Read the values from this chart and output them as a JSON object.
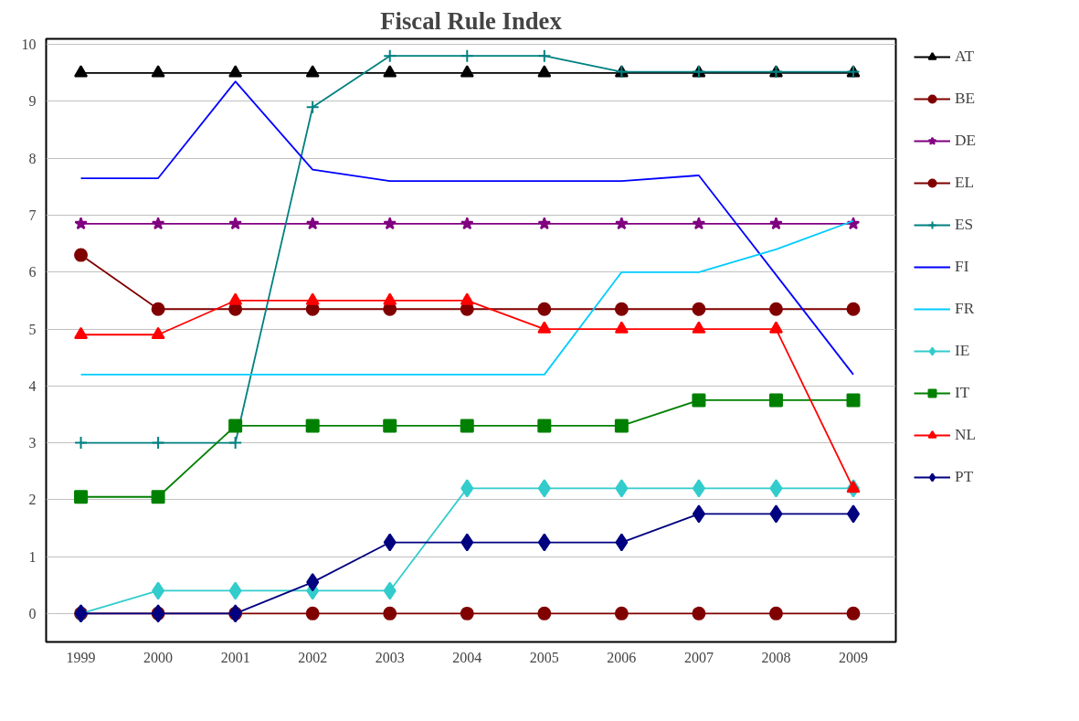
{
  "chart_data": {
    "type": "line",
    "title": "Fiscal Rule Index",
    "categories": [
      "1999",
      "2000",
      "2001",
      "2002",
      "2003",
      "2004",
      "2005",
      "2006",
      "2007",
      "2008",
      "2009"
    ],
    "series": [
      {
        "name": "AT",
        "color": "#000000",
        "marker": "triangle",
        "values": [
          9.5,
          9.5,
          9.5,
          9.5,
          9.5,
          9.5,
          9.5,
          9.5,
          9.5,
          9.5,
          9.5
        ]
      },
      {
        "name": "BE",
        "color": "#800000",
        "marker": "circle",
        "values": [
          6.3,
          5.35,
          5.35,
          5.35,
          5.35,
          5.35,
          5.35,
          5.35,
          5.35,
          5.35,
          5.35
        ]
      },
      {
        "name": "DE",
        "color": "#800080",
        "marker": "star",
        "values": [
          6.85,
          6.85,
          6.85,
          6.85,
          6.85,
          6.85,
          6.85,
          6.85,
          6.85,
          6.85,
          6.85
        ]
      },
      {
        "name": "EL",
        "color": "#800000",
        "marker": "circle",
        "values": [
          0,
          0,
          0,
          0,
          0,
          0,
          0,
          0,
          0,
          0,
          0
        ]
      },
      {
        "name": "ES",
        "color": "#008080",
        "marker": "cross",
        "values": [
          3.0,
          3.0,
          3.0,
          8.9,
          9.8,
          9.8,
          9.8,
          9.52,
          9.52,
          9.52,
          9.52
        ]
      },
      {
        "name": "FI",
        "color": "#0000ff",
        "marker": "none",
        "values": [
          7.65,
          7.65,
          9.35,
          7.8,
          7.6,
          7.6,
          7.6,
          7.6,
          7.7,
          5.95,
          4.2
        ]
      },
      {
        "name": "FR",
        "color": "#00ccff",
        "marker": "none",
        "values": [
          4.2,
          4.2,
          4.2,
          4.2,
          4.2,
          4.2,
          4.2,
          6.0,
          6.0,
          6.4,
          6.9
        ]
      },
      {
        "name": "IE",
        "color": "#33cccc",
        "marker": "diamond",
        "values": [
          0,
          0.4,
          0.4,
          0.4,
          0.4,
          2.2,
          2.2,
          2.2,
          2.2,
          2.2,
          2.2
        ]
      },
      {
        "name": "IT",
        "color": "#008000",
        "marker": "square",
        "values": [
          2.05,
          2.05,
          3.3,
          3.3,
          3.3,
          3.3,
          3.3,
          3.3,
          3.75,
          3.75,
          3.75
        ]
      },
      {
        "name": "NL",
        "color": "#ff0000",
        "marker": "triangle",
        "values": [
          4.9,
          4.9,
          5.5,
          5.5,
          5.5,
          5.5,
          5.0,
          5.0,
          5.0,
          5.0,
          2.2
        ]
      },
      {
        "name": "PT",
        "color": "#000080",
        "marker": "diamond",
        "values": [
          0,
          0,
          0,
          0.55,
          1.25,
          1.25,
          1.25,
          1.25,
          1.75,
          1.75,
          1.75
        ]
      }
    ],
    "ylim": [
      -0.5,
      10.1
    ],
    "yticks": [
      0,
      1,
      2,
      3,
      4,
      5,
      6,
      7,
      8,
      9,
      10
    ],
    "grid": "y",
    "legend": "right",
    "line_style": "solid"
  }
}
